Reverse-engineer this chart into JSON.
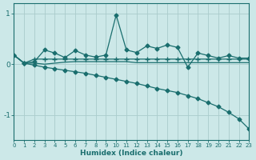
{
  "xlabel": "Humidex (Indice chaleur)",
  "bg_color": "#cce8e8",
  "grid_color": "#aacccc",
  "line_color": "#1a6e6e",
  "xlim": [
    0,
    23
  ],
  "ylim": [
    -1.5,
    1.2
  ],
  "yticks": [
    -1,
    0,
    1
  ],
  "xticks": [
    0,
    1,
    2,
    3,
    4,
    5,
    6,
    7,
    8,
    9,
    10,
    11,
    12,
    13,
    14,
    15,
    16,
    17,
    18,
    19,
    20,
    21,
    22,
    23
  ],
  "s1_x": [
    0,
    1,
    2,
    3,
    4,
    5,
    6,
    7,
    8,
    9,
    10,
    11,
    12,
    13,
    14,
    15,
    16,
    17,
    18,
    19,
    20,
    21,
    22,
    23
  ],
  "s1_y": [
    0.18,
    0.02,
    0.05,
    0.28,
    0.22,
    0.13,
    0.27,
    0.18,
    0.14,
    0.18,
    0.97,
    0.28,
    0.23,
    0.36,
    0.31,
    0.38,
    0.33,
    -0.06,
    0.22,
    0.17,
    0.12,
    0.17,
    0.12,
    0.12
  ],
  "s2_x": [
    0,
    1,
    2,
    3,
    4,
    5,
    6,
    7,
    8,
    9,
    10,
    11,
    12,
    13,
    14,
    15,
    16,
    17,
    18,
    19,
    20,
    21,
    22,
    23
  ],
  "s2_y": [
    0.18,
    0.02,
    0.1,
    0.1,
    0.1,
    0.1,
    0.1,
    0.1,
    0.1,
    0.1,
    0.1,
    0.1,
    0.1,
    0.1,
    0.1,
    0.1,
    0.1,
    0.1,
    0.1,
    0.1,
    0.1,
    0.1,
    0.1,
    0.1
  ],
  "s3_x": [
    0,
    1,
    2,
    3,
    4,
    5,
    6,
    7,
    8,
    9,
    10,
    11,
    12,
    13,
    14,
    15,
    16,
    17,
    18,
    19,
    20,
    21,
    22,
    23
  ],
  "s3_y": [
    0.18,
    0.02,
    0.02,
    0.0,
    0.02,
    0.04,
    0.05,
    0.05,
    0.05,
    0.05,
    0.05,
    0.05,
    0.03,
    0.03,
    0.03,
    0.03,
    0.03,
    0.03,
    0.03,
    0.03,
    0.03,
    0.03,
    0.03,
    0.03
  ],
  "s4_x": [
    0,
    1,
    2,
    3,
    4,
    5,
    6,
    7,
    8,
    9,
    10,
    11,
    12,
    13,
    14,
    15,
    16,
    17,
    18,
    19,
    20,
    21,
    22,
    23
  ],
  "s4_y": [
    0.18,
    0.02,
    -0.02,
    -0.06,
    -0.09,
    -0.12,
    -0.15,
    -0.18,
    -0.22,
    -0.26,
    -0.3,
    -0.34,
    -0.38,
    -0.43,
    -0.48,
    -0.52,
    -0.56,
    -0.62,
    -0.68,
    -0.76,
    -0.84,
    -0.95,
    -1.08,
    -1.28
  ]
}
